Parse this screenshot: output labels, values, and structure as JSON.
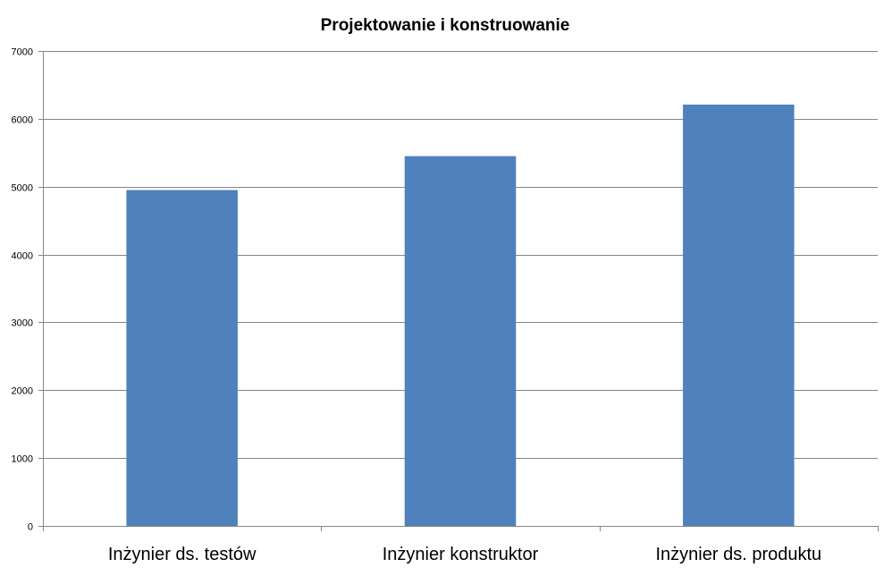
{
  "chart_data": {
    "type": "bar",
    "title": "Projektowanie i konstruowanie",
    "xlabel": "",
    "ylabel": "",
    "categories": [
      "Inżynier ds. testów",
      "Inżynier konstruktor",
      "Inżynier ds. produktu"
    ],
    "values": [
      4950,
      5450,
      6210
    ],
    "ylim": [
      0,
      7000
    ],
    "yticks": [
      0,
      1000,
      2000,
      3000,
      4000,
      5000,
      6000,
      7000
    ],
    "ytick_labels": [
      "0",
      "1000",
      "2000",
      "3000",
      "4000",
      "5000",
      "6000",
      "7000"
    ],
    "grid": true,
    "legend": "none",
    "colors": {
      "bar": "#4F81BD",
      "grid": "#868686",
      "axis": "#868686",
      "text": "#000000"
    }
  }
}
